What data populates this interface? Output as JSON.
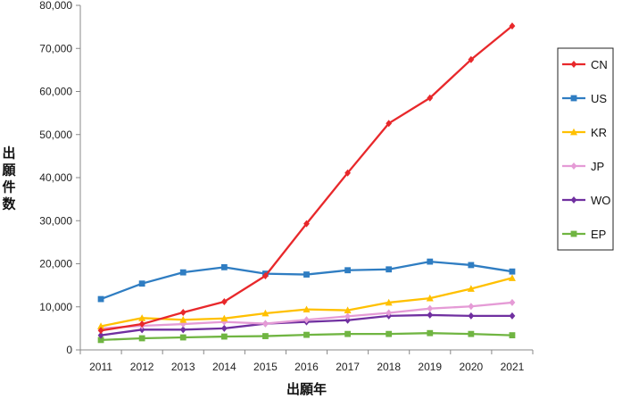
{
  "chart_data": {
    "type": "line",
    "title": "",
    "xlabel": "出願年",
    "ylabel": "出願件数",
    "x": [
      "2011",
      "2012",
      "2013",
      "2014",
      "2015",
      "2016",
      "2017",
      "2018",
      "2019",
      "2020",
      "2021"
    ],
    "ylim": [
      0,
      80000
    ],
    "yticks": [
      "0",
      "10,000",
      "20,000",
      "30,000",
      "40,000",
      "50,000",
      "60,000",
      "70,000",
      "80,000"
    ],
    "yticks_values": [
      0,
      10000,
      20000,
      30000,
      40000,
      50000,
      60000,
      70000,
      80000
    ],
    "grid": false,
    "legend_position": "right",
    "series": [
      {
        "name": "CN",
        "color": "#e8282b",
        "marker": "diamond",
        "values": [
          4500,
          6000,
          8700,
          11200,
          17200,
          29300,
          41100,
          52600,
          58500,
          67400,
          75200
        ]
      },
      {
        "name": "US",
        "color": "#2f7dc2",
        "marker": "square",
        "values": [
          11800,
          15400,
          18000,
          19200,
          17700,
          17500,
          18500,
          18700,
          20500,
          19700,
          18200
        ]
      },
      {
        "name": "KR",
        "color": "#ffc000",
        "marker": "triangle",
        "values": [
          5500,
          7400,
          7000,
          7300,
          8500,
          9400,
          9200,
          11000,
          12000,
          14200,
          16700
        ]
      },
      {
        "name": "JP",
        "color": "#e59bd6",
        "marker": "diamond",
        "values": [
          5000,
          5600,
          6000,
          6500,
          6100,
          7000,
          7800,
          8600,
          9600,
          10100,
          11000
        ]
      },
      {
        "name": "WO",
        "color": "#7030a0",
        "marker": "diamond",
        "values": [
          3400,
          4700,
          4700,
          5000,
          6100,
          6500,
          6900,
          7900,
          8100,
          7900,
          7900
        ]
      },
      {
        "name": "EP",
        "color": "#70b542",
        "marker": "square",
        "values": [
          2300,
          2700,
          2900,
          3100,
          3200,
          3500,
          3700,
          3700,
          3900,
          3700,
          3400
        ]
      }
    ]
  }
}
